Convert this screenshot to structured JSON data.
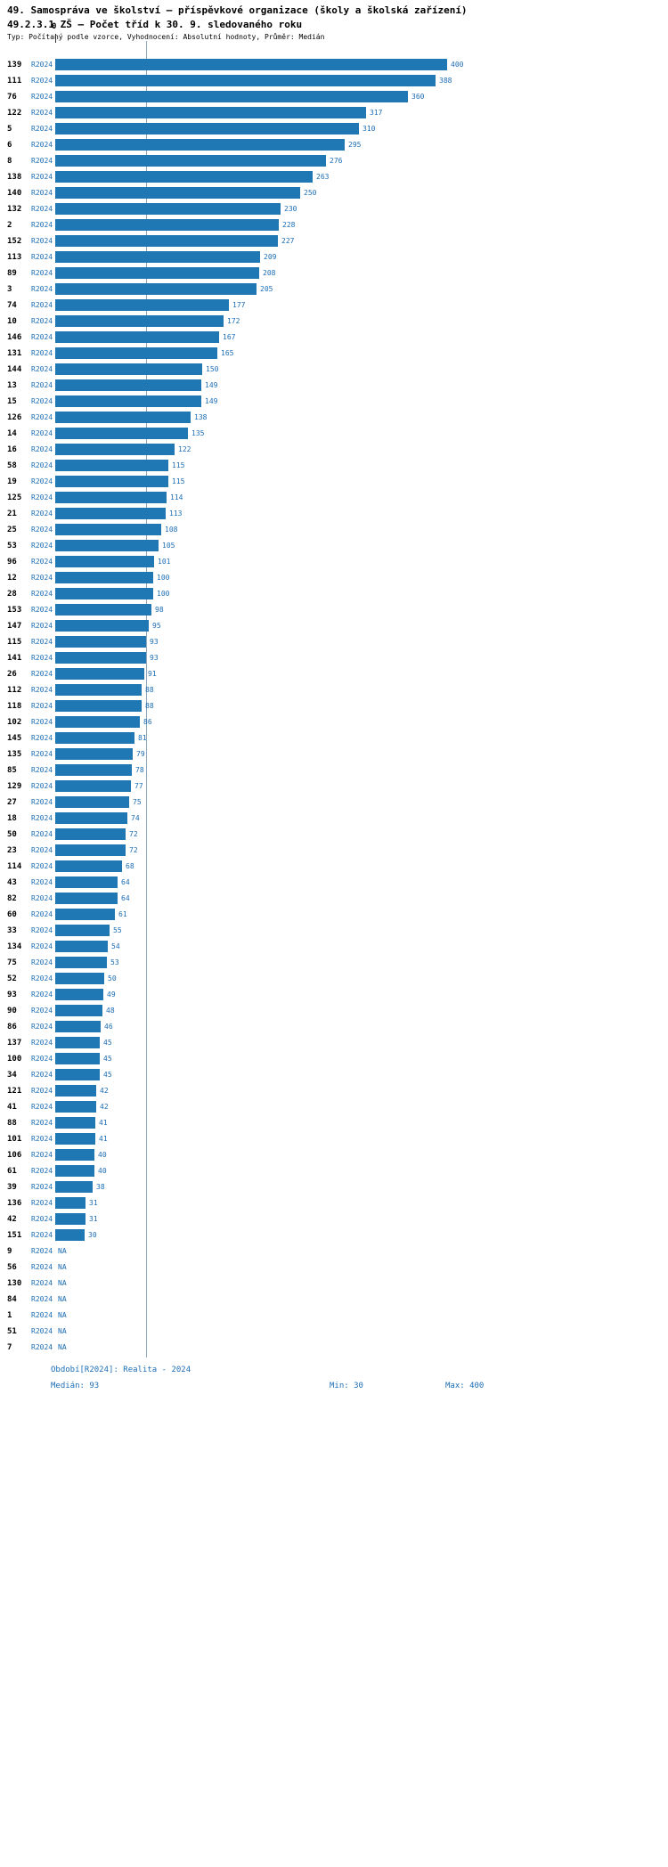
{
  "chart_data": {
    "type": "bar",
    "orientation": "horizontal",
    "title": "49. Samospráva ve školství – příspěvkové organizace (školy a školská zařízení)",
    "subtitle": "49.2.3.1 ZŠ – Počet tříd k 30. 9. sledovaného roku",
    "meta": "Typ: Počítaný podle vzorce, Vyhodnocení: Absolutní hodnoty, Průměr: Medián",
    "zero_label": "0",
    "series_label": "R2024",
    "na_label": "NA",
    "categories": [
      "139",
      "111",
      "76",
      "122",
      "5",
      "6",
      "8",
      "138",
      "140",
      "132",
      "2",
      "152",
      "113",
      "89",
      "3",
      "74",
      "10",
      "146",
      "131",
      "144",
      "13",
      "15",
      "126",
      "14",
      "16",
      "58",
      "19",
      "125",
      "21",
      "25",
      "53",
      "96",
      "12",
      "28",
      "153",
      "147",
      "115",
      "141",
      "26",
      "112",
      "118",
      "102",
      "145",
      "135",
      "85",
      "129",
      "27",
      "18",
      "50",
      "23",
      "114",
      "43",
      "82",
      "60",
      "33",
      "134",
      "75",
      "52",
      "93",
      "90",
      "86",
      "137",
      "100",
      "34",
      "121",
      "41",
      "88",
      "101",
      "106",
      "61",
      "39",
      "136",
      "42",
      "151",
      "9",
      "56",
      "130",
      "84",
      "1",
      "51",
      "7"
    ],
    "values": [
      400,
      388,
      360,
      317,
      310,
      295,
      276,
      263,
      250,
      230,
      228,
      227,
      209,
      208,
      205,
      177,
      172,
      167,
      165,
      150,
      149,
      149,
      138,
      135,
      122,
      115,
      115,
      114,
      113,
      108,
      105,
      101,
      100,
      100,
      98,
      95,
      93,
      93,
      91,
      88,
      88,
      86,
      81,
      79,
      78,
      77,
      75,
      74,
      72,
      72,
      68,
      64,
      64,
      61,
      55,
      54,
      53,
      50,
      49,
      48,
      46,
      45,
      45,
      45,
      42,
      42,
      41,
      41,
      40,
      40,
      38,
      31,
      31,
      30,
      null,
      null,
      null,
      null,
      null,
      null,
      null
    ],
    "xlim": [
      0,
      400
    ],
    "median": 93,
    "min": 30,
    "max": 400,
    "grid": false,
    "legend": false,
    "median_line": true,
    "bar_color": "#1f77b4",
    "label_color": "#1b6db5",
    "median_line_color": "#8fa8bc",
    "footer": {
      "period": "Období[R2024]: Realita - 2024",
      "median_label": "Medián: 93",
      "min_label": "Min: 30",
      "max_label": "Max: 400"
    }
  }
}
